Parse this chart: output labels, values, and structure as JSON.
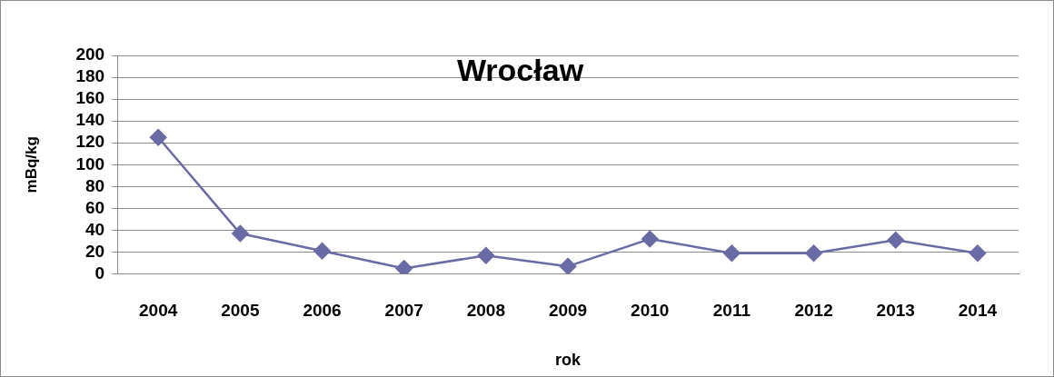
{
  "chart_data": {
    "type": "line",
    "title": "Wrocław",
    "xlabel": "rok",
    "ylabel": "mBq/kg",
    "categories": [
      "2004",
      "2005",
      "2006",
      "2007",
      "2008",
      "2009",
      "2010",
      "2011",
      "2012",
      "2013",
      "2014"
    ],
    "series": [
      {
        "color": "#6a6aa6",
        "values": [
          125,
          37,
          21,
          5,
          17,
          7,
          32,
          19,
          19,
          31,
          19
        ]
      }
    ],
    "ylim": [
      0,
      200
    ],
    "yticks": [
      0,
      20,
      40,
      60,
      80,
      100,
      120,
      140,
      160,
      180,
      200
    ],
    "grid": "y",
    "legend": false,
    "marker": "diamond",
    "line_style": "solid"
  }
}
